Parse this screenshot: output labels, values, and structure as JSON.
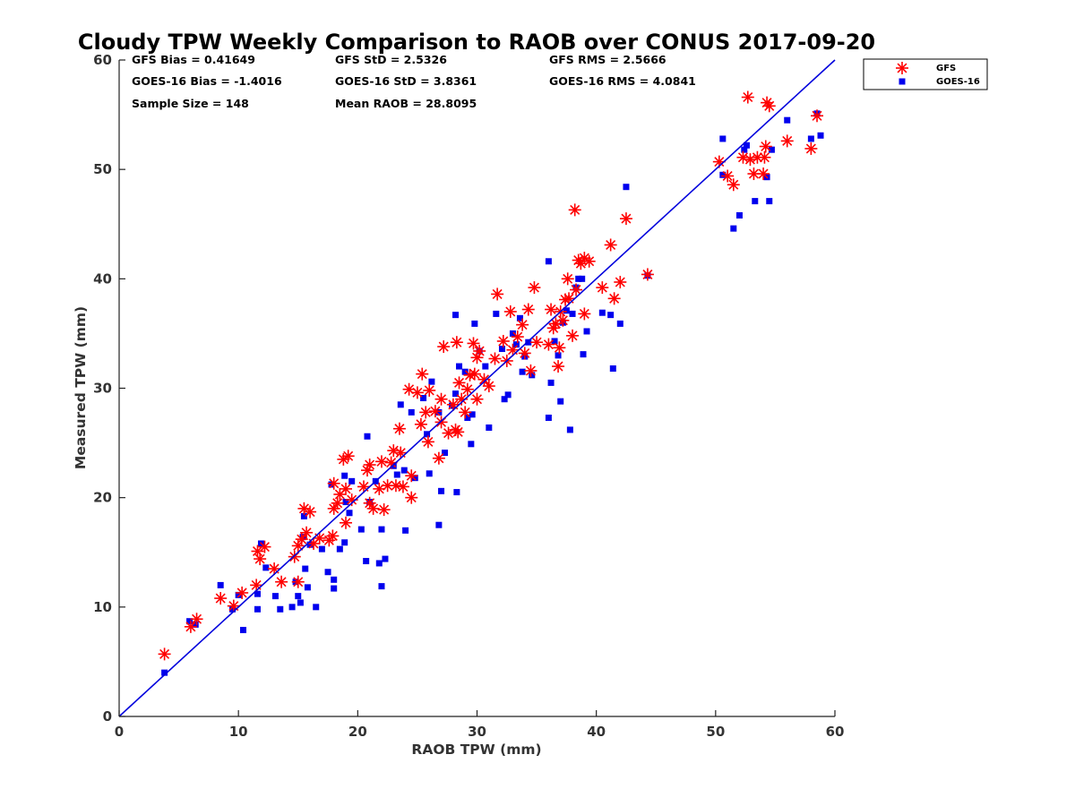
{
  "chart_data": {
    "type": "scatter",
    "title": "Cloudy TPW Weekly Comparison to RAOB over CONUS 2017-09-20",
    "xlabel": "RAOB TPW (mm)",
    "ylabel": "Measured TPW (mm)",
    "xlim": [
      0,
      60
    ],
    "ylim": [
      0,
      60
    ],
    "xticks": [
      "0",
      "10",
      "20",
      "30",
      "40",
      "50",
      "60"
    ],
    "yticks": [
      "0",
      "10",
      "20",
      "30",
      "40",
      "50",
      "60"
    ],
    "grid": false,
    "legend_position": "outside top-right",
    "reference_line": {
      "x": [
        0,
        60
      ],
      "y": [
        0,
        60
      ],
      "color": "#0000dd"
    },
    "stats": [
      "GFS Bias = 0.41649",
      "GFS StD = 2.5326",
      "GFS RMS = 2.5666",
      "GOES-16 Bias = -1.4016",
      "GOES-16 StD = 3.8361",
      "GOES-16 RMS = 4.0841",
      "Sample Size = 148",
      "Mean RAOB = 28.8095"
    ],
    "series": [
      {
        "name": "GFS",
        "marker": "asterisk",
        "color": "#ff0000",
        "points": [
          [
            3.8,
            5.7
          ],
          [
            6.0,
            8.2
          ],
          [
            6.5,
            8.9
          ],
          [
            8.5,
            10.8
          ],
          [
            9.6,
            10.1
          ],
          [
            10.3,
            11.3
          ],
          [
            11.5,
            12.0
          ],
          [
            11.6,
            15.1
          ],
          [
            11.8,
            14.4
          ],
          [
            12.2,
            15.5
          ],
          [
            13.0,
            13.5
          ],
          [
            13.6,
            12.3
          ],
          [
            14.7,
            14.6
          ],
          [
            15.0,
            12.3
          ],
          [
            15.0,
            15.6
          ],
          [
            15.3,
            16.2
          ],
          [
            15.5,
            19.0
          ],
          [
            15.7,
            16.8
          ],
          [
            16.0,
            18.7
          ],
          [
            16.3,
            15.8
          ],
          [
            16.8,
            16.3
          ],
          [
            17.6,
            16.1
          ],
          [
            17.9,
            16.5
          ],
          [
            18.0,
            21.3
          ],
          [
            18.0,
            19.0
          ],
          [
            18.3,
            19.5
          ],
          [
            18.5,
            20.3
          ],
          [
            18.8,
            23.5
          ],
          [
            19.0,
            17.7
          ],
          [
            19.0,
            20.8
          ],
          [
            19.2,
            23.8
          ],
          [
            19.5,
            19.8
          ],
          [
            20.5,
            21.0
          ],
          [
            20.8,
            22.5
          ],
          [
            21.0,
            23.0
          ],
          [
            21.0,
            19.5
          ],
          [
            21.3,
            19.0
          ],
          [
            21.8,
            20.8
          ],
          [
            22.0,
            23.3
          ],
          [
            22.2,
            18.9
          ],
          [
            22.5,
            21.1
          ],
          [
            22.8,
            23.2
          ],
          [
            23.0,
            24.3
          ],
          [
            23.2,
            21.1
          ],
          [
            23.5,
            26.3
          ],
          [
            23.6,
            24.1
          ],
          [
            23.8,
            21.0
          ],
          [
            24.3,
            29.9
          ],
          [
            24.5,
            22.0
          ],
          [
            24.5,
            20.0
          ],
          [
            25.0,
            29.6
          ],
          [
            25.3,
            26.7
          ],
          [
            25.4,
            31.3
          ],
          [
            25.7,
            27.8
          ],
          [
            25.9,
            25.1
          ],
          [
            26.0,
            29.8
          ],
          [
            26.5,
            27.9
          ],
          [
            26.8,
            23.6
          ],
          [
            27.0,
            26.9
          ],
          [
            27.0,
            29.0
          ],
          [
            27.2,
            33.8
          ],
          [
            27.6,
            25.9
          ],
          [
            28.0,
            28.5
          ],
          [
            28.2,
            26.2
          ],
          [
            28.3,
            34.2
          ],
          [
            28.4,
            26.0
          ],
          [
            28.5,
            30.5
          ],
          [
            28.7,
            29.0
          ],
          [
            29.0,
            27.8
          ],
          [
            29.2,
            29.9
          ],
          [
            29.4,
            31.2
          ],
          [
            29.7,
            34.1
          ],
          [
            29.8,
            31.3
          ],
          [
            30.0,
            29.0
          ],
          [
            30.0,
            32.8
          ],
          [
            30.2,
            33.4
          ],
          [
            30.6,
            30.8
          ],
          [
            31.0,
            30.2
          ],
          [
            31.5,
            32.7
          ],
          [
            31.7,
            38.6
          ],
          [
            32.2,
            34.3
          ],
          [
            32.5,
            32.5
          ],
          [
            32.8,
            37.0
          ],
          [
            33.0,
            33.5
          ],
          [
            33.4,
            34.7
          ],
          [
            33.8,
            35.8
          ],
          [
            34.0,
            33.2
          ],
          [
            34.3,
            37.2
          ],
          [
            34.5,
            31.6
          ],
          [
            34.8,
            39.2
          ],
          [
            35.0,
            34.2
          ],
          [
            36.0,
            34.0
          ],
          [
            36.2,
            37.2
          ],
          [
            36.4,
            35.5
          ],
          [
            36.6,
            35.9
          ],
          [
            36.8,
            32.0
          ],
          [
            36.9,
            33.7
          ],
          [
            37.0,
            37.0
          ],
          [
            37.2,
            36.2
          ],
          [
            37.4,
            38.1
          ],
          [
            37.6,
            40.0
          ],
          [
            37.7,
            38.2
          ],
          [
            38.0,
            34.8
          ],
          [
            38.2,
            46.3
          ],
          [
            38.3,
            39.0
          ],
          [
            38.5,
            41.7
          ],
          [
            38.7,
            41.4
          ],
          [
            39.0,
            41.9
          ],
          [
            39.0,
            36.8
          ],
          [
            39.4,
            41.6
          ],
          [
            40.5,
            39.2
          ],
          [
            41.2,
            43.1
          ],
          [
            41.5,
            38.2
          ],
          [
            42.0,
            39.7
          ],
          [
            42.5,
            45.5
          ],
          [
            44.3,
            40.4
          ],
          [
            50.3,
            50.7
          ],
          [
            51.0,
            49.4
          ],
          [
            51.5,
            48.6
          ],
          [
            52.3,
            51.1
          ],
          [
            52.7,
            56.6
          ],
          [
            52.9,
            50.9
          ],
          [
            53.2,
            49.6
          ],
          [
            53.5,
            51.1
          ],
          [
            54.0,
            49.6
          ],
          [
            54.1,
            51.1
          ],
          [
            54.2,
            52.1
          ],
          [
            54.3,
            56.1
          ],
          [
            54.5,
            55.8
          ],
          [
            56.0,
            52.6
          ],
          [
            58.0,
            51.9
          ],
          [
            58.5,
            54.9
          ]
        ]
      },
      {
        "name": "GOES-16",
        "marker": "square",
        "color": "#0000ee",
        "points": [
          [
            3.8,
            4.0
          ],
          [
            5.9,
            8.7
          ],
          [
            6.4,
            8.4
          ],
          [
            8.5,
            12.0
          ],
          [
            9.5,
            9.8
          ],
          [
            10.0,
            11.1
          ],
          [
            10.4,
            7.9
          ],
          [
            11.6,
            11.2
          ],
          [
            11.6,
            9.8
          ],
          [
            11.9,
            15.8
          ],
          [
            12.3,
            13.6
          ],
          [
            13.1,
            11.0
          ],
          [
            13.5,
            9.8
          ],
          [
            14.5,
            10.0
          ],
          [
            14.8,
            12.3
          ],
          [
            15.0,
            11.0
          ],
          [
            15.2,
            10.4
          ],
          [
            15.4,
            16.4
          ],
          [
            15.5,
            18.3
          ],
          [
            15.6,
            13.5
          ],
          [
            15.8,
            11.8
          ],
          [
            16.0,
            15.7
          ],
          [
            16.5,
            10.0
          ],
          [
            17.0,
            15.3
          ],
          [
            17.5,
            13.2
          ],
          [
            17.8,
            21.2
          ],
          [
            18.0,
            12.5
          ],
          [
            18.0,
            11.7
          ],
          [
            18.5,
            15.3
          ],
          [
            18.9,
            15.9
          ],
          [
            18.9,
            22.0
          ],
          [
            19.0,
            19.6
          ],
          [
            19.3,
            18.6
          ],
          [
            19.5,
            21.5
          ],
          [
            20.3,
            17.1
          ],
          [
            20.7,
            14.2
          ],
          [
            20.8,
            25.6
          ],
          [
            21.0,
            19.6
          ],
          [
            21.5,
            21.5
          ],
          [
            21.8,
            14.0
          ],
          [
            22.0,
            11.9
          ],
          [
            22.0,
            17.1
          ],
          [
            22.3,
            14.4
          ],
          [
            23.0,
            22.9
          ],
          [
            23.3,
            22.1
          ],
          [
            23.6,
            28.5
          ],
          [
            23.9,
            22.5
          ],
          [
            24.0,
            17.0
          ],
          [
            24.5,
            27.8
          ],
          [
            24.8,
            21.8
          ],
          [
            25.5,
            29.1
          ],
          [
            25.8,
            25.8
          ],
          [
            26.0,
            22.2
          ],
          [
            26.2,
            30.6
          ],
          [
            26.8,
            27.8
          ],
          [
            26.8,
            17.5
          ],
          [
            27.0,
            20.6
          ],
          [
            27.3,
            24.1
          ],
          [
            27.9,
            28.4
          ],
          [
            28.2,
            29.5
          ],
          [
            28.2,
            36.7
          ],
          [
            28.3,
            20.5
          ],
          [
            28.5,
            32.0
          ],
          [
            29.0,
            31.5
          ],
          [
            29.2,
            27.3
          ],
          [
            29.5,
            24.9
          ],
          [
            29.6,
            27.6
          ],
          [
            29.8,
            35.9
          ],
          [
            30.2,
            33.4
          ],
          [
            30.7,
            32.0
          ],
          [
            31.0,
            26.4
          ],
          [
            31.6,
            36.8
          ],
          [
            32.1,
            33.6
          ],
          [
            32.3,
            29.0
          ],
          [
            32.6,
            29.4
          ],
          [
            33.0,
            35.0
          ],
          [
            33.3,
            34.0
          ],
          [
            33.6,
            36.4
          ],
          [
            33.8,
            31.5
          ],
          [
            34.0,
            32.9
          ],
          [
            34.3,
            34.2
          ],
          [
            34.6,
            31.2
          ],
          [
            36.0,
            41.6
          ],
          [
            36.0,
            27.3
          ],
          [
            36.2,
            30.5
          ],
          [
            36.5,
            34.3
          ],
          [
            36.8,
            33.0
          ],
          [
            37.0,
            28.8
          ],
          [
            37.2,
            36.0
          ],
          [
            37.5,
            37.1
          ],
          [
            37.8,
            26.2
          ],
          [
            38.0,
            36.8
          ],
          [
            38.3,
            39.2
          ],
          [
            38.5,
            40.0
          ],
          [
            38.8,
            40.0
          ],
          [
            38.9,
            33.1
          ],
          [
            39.2,
            35.2
          ],
          [
            40.5,
            36.9
          ],
          [
            41.2,
            36.7
          ],
          [
            41.4,
            31.8
          ],
          [
            42.0,
            35.9
          ],
          [
            42.5,
            48.4
          ],
          [
            44.3,
            40.3
          ],
          [
            50.6,
            49.5
          ],
          [
            50.6,
            52.8
          ],
          [
            51.5,
            44.6
          ],
          [
            52.0,
            45.8
          ],
          [
            52.4,
            51.8
          ],
          [
            52.6,
            52.2
          ],
          [
            53.3,
            47.1
          ],
          [
            54.3,
            49.3
          ],
          [
            54.5,
            47.1
          ],
          [
            54.7,
            51.8
          ],
          [
            56.0,
            54.5
          ],
          [
            58.0,
            52.8
          ],
          [
            58.5,
            55.1
          ],
          [
            58.8,
            53.1
          ]
        ]
      }
    ]
  }
}
